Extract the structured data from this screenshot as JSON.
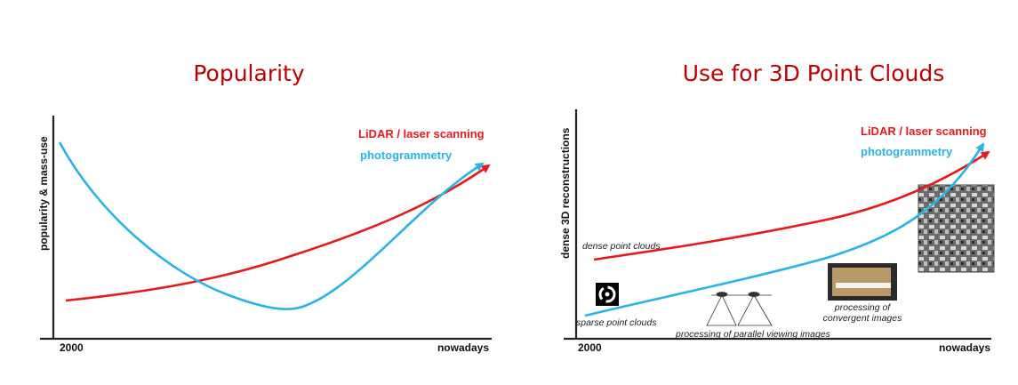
{
  "chart_data": [
    {
      "type": "line",
      "title": "Popularity",
      "ylabel": "popularity & mass-use",
      "x_ticks": [
        "2000",
        "nowadays"
      ],
      "series": [
        {
          "name": "LiDAR / laser scanning",
          "color": "#e8191c"
        },
        {
          "name": "photogrammetry",
          "color": "#27b4e6"
        }
      ]
    },
    {
      "type": "line",
      "title": "Use for 3D Point Clouds",
      "ylabel": "dense 3D reconstructions",
      "x_ticks": [
        "2000",
        "nowadays"
      ],
      "series": [
        {
          "name": "LiDAR / laser scanning",
          "color": "#e8191c"
        },
        {
          "name": "photogrammetry",
          "color": "#27b4e6"
        }
      ],
      "annotations": [
        "dense point clouds",
        "sparse point clouds",
        "processing of parallel viewing images",
        "processing of",
        "convergent images"
      ]
    }
  ]
}
